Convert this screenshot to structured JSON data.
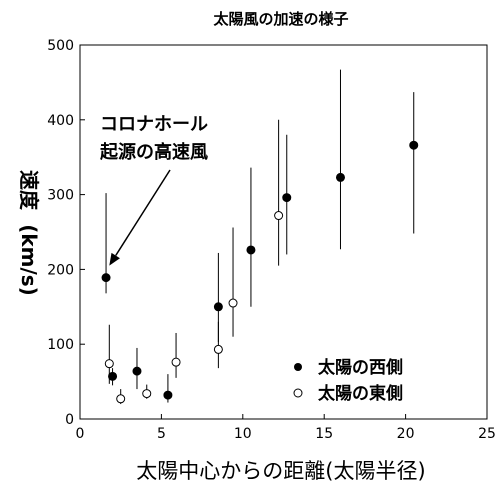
{
  "chart_data": {
    "type": "scatter",
    "title": "太陽風の加速の様子",
    "xlabel": "太陽中心からの距離(太陽半径)",
    "ylabel_part1": "速度",
    "ylabel_part2": "(km/s)",
    "xlim": [
      0,
      25
    ],
    "ylim": [
      0,
      500
    ],
    "xticks": [
      0,
      5,
      10,
      15,
      20,
      25
    ],
    "yticks": [
      0,
      100,
      200,
      300,
      400,
      500
    ],
    "grid": false,
    "legend_position": "bottom-right",
    "annotation": {
      "line1": "コロナホール",
      "line2": "起源の高速風",
      "points_to_x": 1.8,
      "points_to_y": 205
    },
    "series": [
      {
        "name": "太陽の西側",
        "marker": "filled-circle",
        "points": [
          {
            "x": 1.6,
            "y": 189,
            "lo": 168,
            "hi": 302
          },
          {
            "x": 2.0,
            "y": 57,
            "lo": 45,
            "hi": 68
          },
          {
            "x": 3.5,
            "y": 64,
            "lo": 40,
            "hi": 95
          },
          {
            "x": 5.4,
            "y": 32,
            "lo": 22,
            "hi": 60
          },
          {
            "x": 8.5,
            "y": 150,
            "lo": 103,
            "hi": 222
          },
          {
            "x": 10.5,
            "y": 226,
            "lo": 150,
            "hi": 336
          },
          {
            "x": 12.7,
            "y": 296,
            "lo": 220,
            "hi": 380
          },
          {
            "x": 16.0,
            "y": 323,
            "lo": 227,
            "hi": 467
          },
          {
            "x": 20.5,
            "y": 366,
            "lo": 248,
            "hi": 437
          }
        ]
      },
      {
        "name": "太陽の東側",
        "marker": "open-circle",
        "points": [
          {
            "x": 1.8,
            "y": 74,
            "lo": 47,
            "hi": 126
          },
          {
            "x": 2.5,
            "y": 27,
            "lo": 20,
            "hi": 40
          },
          {
            "x": 4.1,
            "y": 34,
            "lo": 27,
            "hi": 46
          },
          {
            "x": 5.9,
            "y": 76,
            "lo": 55,
            "hi": 115
          },
          {
            "x": 8.5,
            "y": 93,
            "lo": 68,
            "hi": 130
          },
          {
            "x": 9.4,
            "y": 155,
            "lo": 110,
            "hi": 256
          },
          {
            "x": 12.2,
            "y": 272,
            "lo": 205,
            "hi": 400
          }
        ]
      }
    ]
  }
}
